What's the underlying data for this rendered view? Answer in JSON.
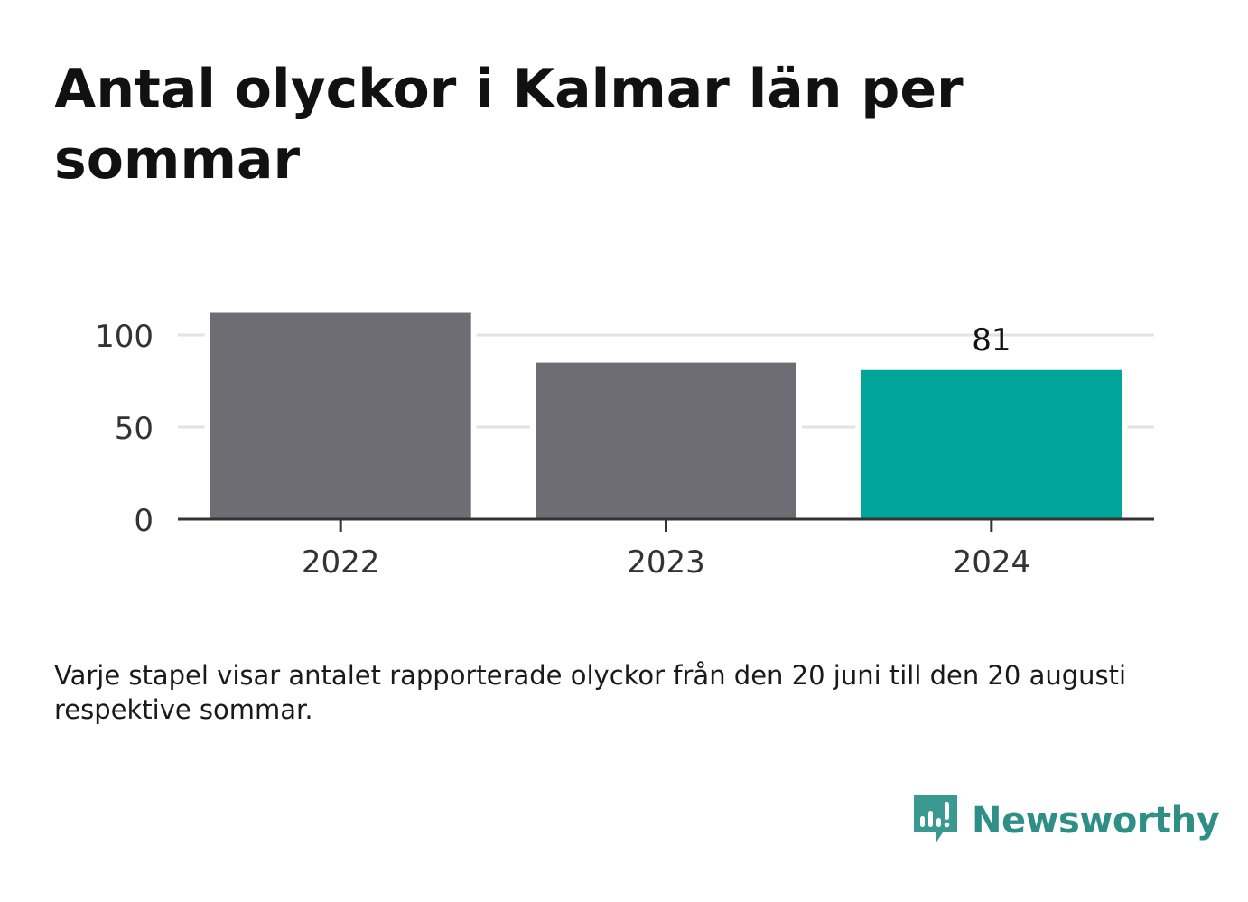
{
  "title": "Antal olyckor i Kalmar län per sommar",
  "note": "Varje stapel visar antalet rapporterade olyckor från den 20 juni till den 20 augusti respektive sommar.",
  "brand": {
    "name": "Newsworthy",
    "color": "#3a9a92",
    "icon": "bar-chart-speech-bubble-icon"
  },
  "colors": {
    "default_bar": "#6e6d73",
    "highlight_bar": "#01a59a",
    "grid": "#e3e3e3",
    "axis": "#333333"
  },
  "chart_data": {
    "type": "bar",
    "title": "Antal olyckor i Kalmar län per sommar",
    "categories": [
      "2022",
      "2023",
      "2024"
    ],
    "values": [
      112,
      85,
      81
    ],
    "highlight_index": 2,
    "data_labels": [
      null,
      null,
      "81"
    ],
    "ylim": [
      0,
      112
    ],
    "yticks": [
      0,
      50,
      100
    ],
    "grid": true,
    "legend": "none",
    "xlabel": "",
    "ylabel": ""
  }
}
